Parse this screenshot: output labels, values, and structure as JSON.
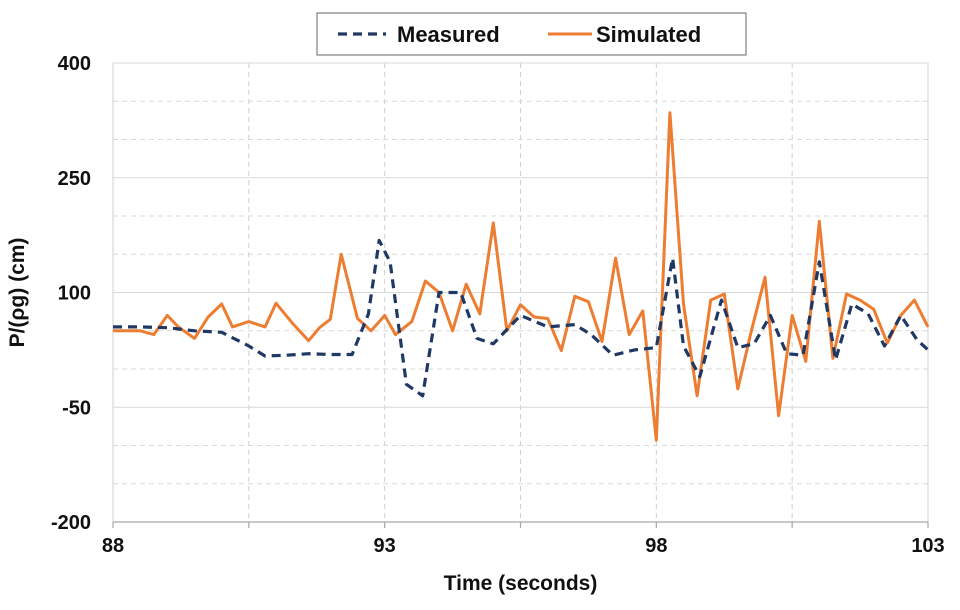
{
  "chart_data": {
    "type": "line",
    "title": "",
    "xlabel": "Time (seconds)",
    "ylabel": "P/(ρg) (cm)",
    "xlim": [
      88,
      103
    ],
    "ylim": [
      -200,
      400
    ],
    "x_ticks": [
      88,
      93,
      98,
      103
    ],
    "x_tick_labels": [
      "88",
      "93",
      "98",
      "103"
    ],
    "x_minor_gridlines": [
      90.5,
      95.5,
      100.5
    ],
    "y_ticks": [
      -200,
      -50,
      100,
      250,
      400
    ],
    "y_tick_labels": [
      "-200",
      "-50",
      "100",
      "250",
      "400"
    ],
    "y_minor_gridlines": [
      -150,
      -100,
      0,
      50,
      150,
      200,
      300,
      350
    ],
    "grid": true,
    "legend_position": "top-center",
    "series": [
      {
        "name": "Measured",
        "color": "#1f3864",
        "style": "dashed",
        "x": [
          88.0,
          88.5,
          89.0,
          89.5,
          90.0,
          90.5,
          90.8,
          91.2,
          91.6,
          92.0,
          92.4,
          92.7,
          92.9,
          93.1,
          93.4,
          93.7,
          94.0,
          94.4,
          94.7,
          95.0,
          95.5,
          96.0,
          96.5,
          96.8,
          97.2,
          97.6,
          98.0,
          98.3,
          98.5,
          98.8,
          99.2,
          99.5,
          99.8,
          100.1,
          100.4,
          100.7,
          101.0,
          101.3,
          101.6,
          101.9,
          102.2,
          102.5,
          102.8,
          103.0
        ],
        "y": [
          55,
          55,
          54,
          50,
          48,
          30,
          17,
          18,
          20,
          19,
          19,
          72,
          168,
          140,
          -20,
          -35,
          100,
          100,
          40,
          33,
          70,
          55,
          58,
          45,
          18,
          25,
          28,
          145,
          30,
          -10,
          90,
          28,
          33,
          70,
          20,
          18,
          140,
          12,
          85,
          72,
          30,
          70,
          38,
          25
        ]
      },
      {
        "name": "Simulated",
        "color": "#ed7d31",
        "style": "solid",
        "x": [
          88.0,
          88.5,
          88.75,
          89.0,
          89.2,
          89.5,
          89.75,
          90.0,
          90.2,
          90.5,
          90.8,
          91.0,
          91.3,
          91.6,
          91.8,
          92.0,
          92.2,
          92.5,
          92.75,
          93.0,
          93.2,
          93.5,
          93.75,
          94.0,
          94.25,
          94.5,
          94.75,
          95.0,
          95.25,
          95.5,
          95.75,
          96.0,
          96.25,
          96.5,
          96.75,
          97.0,
          97.25,
          97.5,
          97.75,
          98.0,
          98.25,
          98.5,
          98.75,
          99.0,
          99.25,
          99.5,
          99.75,
          100.0,
          100.25,
          100.5,
          100.75,
          101.0,
          101.25,
          101.5,
          101.75,
          102.0,
          102.25,
          102.5,
          102.75,
          103.0
        ],
        "y": [
          50,
          50,
          45,
          70,
          55,
          40,
          68,
          85,
          55,
          62,
          55,
          86,
          60,
          37,
          54,
          65,
          150,
          66,
          50,
          70,
          45,
          62,
          115,
          100,
          50,
          111,
          72,
          191,
          50,
          84,
          68,
          66,
          24,
          95,
          88,
          36,
          145,
          45,
          76,
          -93,
          335,
          85,
          -35,
          90,
          98,
          -26,
          50,
          120,
          -61,
          70,
          10,
          193,
          14,
          98,
          90,
          78,
          34,
          70,
          90,
          55
        ]
      }
    ]
  }
}
